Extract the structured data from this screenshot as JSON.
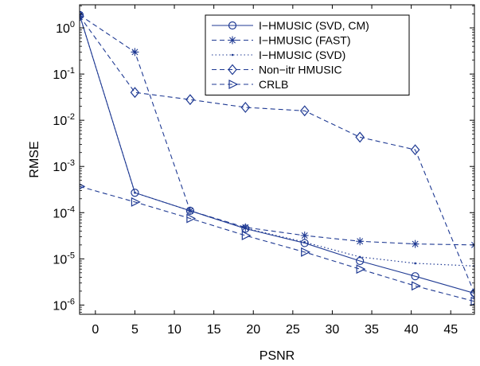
{
  "chart_data": {
    "type": "line",
    "xlabel": "PSNR",
    "ylabel": "RMSE",
    "xlim": [
      -2,
      48
    ],
    "ylim_log10": [
      -6.2,
      0.5
    ],
    "yscale": "log",
    "xticks": [
      0,
      5,
      10,
      15,
      20,
      25,
      30,
      35,
      40,
      45
    ],
    "xtick_labels": [
      "0",
      "5",
      "10",
      "15",
      "20",
      "25",
      "30",
      "35",
      "40",
      "45"
    ],
    "yticks_exp": [
      0,
      -1,
      -2,
      -3,
      -4,
      -5,
      -6
    ],
    "ytick_labels": [
      {
        "base": "10",
        "exp": "0"
      },
      {
        "base": "10",
        "exp": "-1"
      },
      {
        "base": "10",
        "exp": "-2"
      },
      {
        "base": "10",
        "exp": "-3"
      },
      {
        "base": "10",
        "exp": "-4"
      },
      {
        "base": "10",
        "exp": "-5"
      },
      {
        "base": "10",
        "exp": "-6"
      }
    ],
    "grid": false,
    "legend_position": "top-right",
    "x": [
      -2,
      5,
      12,
      19,
      26.5,
      33.5,
      40.5,
      48
    ],
    "series": [
      {
        "name": "I−HMUSIC (SVD, CM)",
        "color": "#1f3a93",
        "line": "solid",
        "marker": "circle",
        "values": [
          1.9,
          0.00027,
          0.00011,
          4.5e-05,
          2.2e-05,
          9e-06,
          4.2e-06,
          1.8e-06
        ]
      },
      {
        "name": "I−HMUSIC (FAST)",
        "color": "#1f3a93",
        "line": "dashed",
        "marker": "star",
        "values": [
          1.9,
          0.3,
          0.00011,
          4.8e-05,
          3.2e-05,
          2.4e-05,
          2.1e-05,
          2e-05
        ]
      },
      {
        "name": "I−HMUSIC (SVD)",
        "color": "#1f3a93",
        "line": "dotted",
        "marker": "dot",
        "values": [
          1.9,
          0.00027,
          0.00011,
          4.6e-05,
          2.3e-05,
          1.1e-05,
          8e-06,
          7e-06
        ]
      },
      {
        "name": "Non−itr HMUSIC",
        "color": "#1f3a93",
        "line": "dashed",
        "marker": "diamond",
        "values": [
          1.8,
          0.04,
          0.028,
          0.019,
          0.016,
          0.0043,
          0.0023,
          1.8e-06
        ]
      },
      {
        "name": "CRLB",
        "color": "#1f3a93",
        "line": "dashed",
        "marker": "triangle-right",
        "values": [
          0.00037,
          0.00017,
          7.5e-05,
          3.2e-05,
          1.4e-05,
          6e-06,
          2.6e-06,
          1.2e-06
        ]
      }
    ]
  }
}
